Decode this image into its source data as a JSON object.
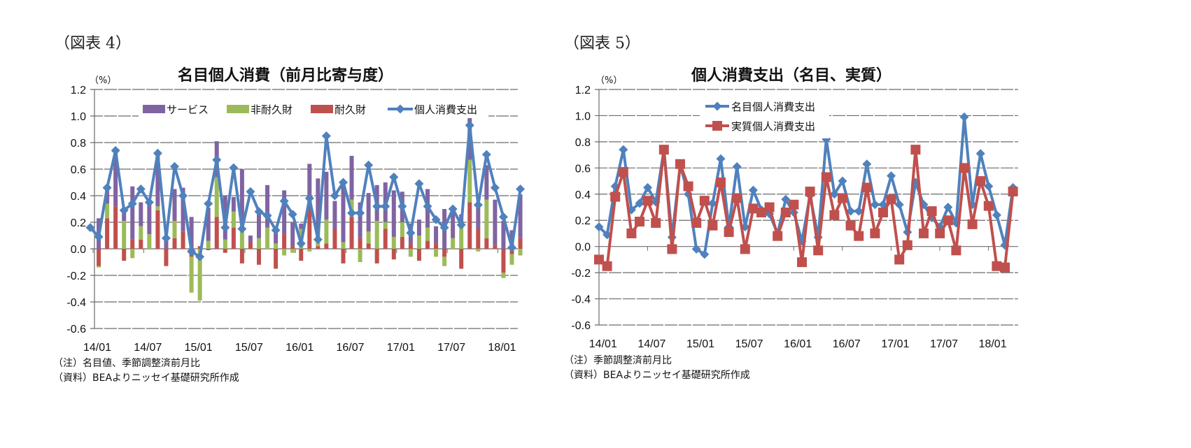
{
  "figures": [
    {
      "label": "（図表 4）",
      "unit": "（%）",
      "notes": [
        "（注）名目値、季節調整済前月比",
        "（資料）BEAよりニッセイ基礎研究所作成"
      ]
    },
    {
      "label": "（図表 5）",
      "unit": "（%）",
      "notes": [
        "（注）季節調整済前月比",
        "（資料）BEAよりニッセイ基礎研究所作成"
      ]
    }
  ],
  "chart_data": [
    {
      "type": "bar",
      "stacked": true,
      "title": "名目個人消費（前月比寄与度）",
      "ylabel": "（%）",
      "xlabel": "",
      "ylim": [
        -0.6,
        1.2
      ],
      "yticks": [
        1.2,
        1.0,
        0.8,
        0.6,
        0.4,
        0.2,
        0.0,
        -0.2,
        -0.4,
        -0.6
      ],
      "ytick_labels": [
        "1.2",
        "1.0",
        "0.8",
        "0.6",
        "0.4",
        "0.2",
        "0.0",
        "-0.2",
        "-0.4",
        "-0.6"
      ],
      "xtick_labels": [
        "14/01",
        "14/07",
        "15/01",
        "15/07",
        "16/01",
        "16/07",
        "17/01",
        "17/07",
        "18/01"
      ],
      "grid": true,
      "legend_position": "top",
      "start_month": "2013/12",
      "colors": {
        "services": "#8064A2",
        "nondurable": "#9BBB59",
        "durable": "#C0504D",
        "total": "#4F81BD"
      },
      "series": [
        {
          "name": "サービス",
          "key": "services",
          "kind": "bar",
          "values": [
            0.0,
            0.23,
            0.1,
            0.41,
            0.09,
            0.4,
            0.18,
            0.24,
            0.41,
            0.07,
            0.24,
            0.33,
            0.24,
            0.0,
            0.25,
            0.27,
            0.33,
            0.11,
            0.4,
            0.05,
            0.21,
            0.32,
            0.08,
            0.33,
            0.18,
            0.04,
            0.31,
            0.39,
            0.36,
            0.21,
            0.43,
            0.33,
            0.27,
            0.29,
            0.27,
            0.3,
            0.35,
            0.23,
            0.15,
            0.12,
            0.29,
            0.13,
            0.3,
            0.22,
            0.08,
            0.4,
            0.16,
            0.26,
            0.34,
            0.21,
            0.14,
            0.33
          ]
        },
        {
          "name": "非耐久財",
          "key": "nondurable",
          "kind": "bar",
          "values": [
            0.0,
            -0.01,
            0.11,
            0.0,
            0.21,
            -0.07,
            0.1,
            0.11,
            0.03,
            0.0,
            0.13,
            0.0,
            -0.27,
            -0.39,
            0.06,
            0.3,
            0.07,
            0.12,
            0.2,
            0.0,
            0.08,
            0.16,
            0.04,
            -0.05,
            -0.03,
            0.15,
            -0.02,
            0.12,
            0.18,
            0.0,
            0.05,
            0.13,
            -0.1,
            0.09,
            0.21,
            0.05,
            0.09,
            0.11,
            -0.06,
            0.1,
            0.1,
            -0.06,
            -0.07,
            0.08,
            0.18,
            0.32,
            -0.02,
            0.29,
            0.0,
            -0.04,
            -0.08,
            -0.05
          ]
        },
        {
          "name": "耐久財",
          "key": "durable",
          "kind": "bar",
          "values": [
            0.0,
            -0.13,
            0.23,
            0.32,
            -0.09,
            0.07,
            0.07,
            0.0,
            0.29,
            -0.13,
            0.08,
            0.13,
            -0.06,
            0.02,
            -0.01,
            0.24,
            -0.03,
            0.16,
            -0.11,
            0.05,
            -0.12,
            0.0,
            -0.15,
            0.11,
            0.02,
            -0.09,
            0.33,
            0.02,
            0.04,
            0.15,
            -0.11,
            0.24,
            0.08,
            0.04,
            -0.11,
            0.15,
            -0.08,
            0.09,
            0.04,
            -0.09,
            0.06,
            0.04,
            -0.06,
            0.0,
            -0.15,
            0.35,
            0.15,
            0.08,
            0.03,
            -0.18,
            -0.04,
            0.08
          ]
        },
        {
          "name": "個人消費支出",
          "key": "total",
          "kind": "line",
          "marker": "diamond",
          "values": [
            0.16,
            0.09,
            0.46,
            0.74,
            0.29,
            0.34,
            0.45,
            0.35,
            0.72,
            0.08,
            0.62,
            0.4,
            -0.02,
            -0.06,
            0.34,
            0.67,
            0.16,
            0.61,
            0.15,
            0.43,
            0.28,
            0.25,
            0.14,
            0.36,
            0.26,
            0.04,
            0.38,
            0.07,
            0.85,
            0.4,
            0.5,
            0.27,
            0.27,
            0.63,
            0.32,
            0.32,
            0.54,
            0.32,
            0.12,
            0.49,
            0.32,
            0.22,
            0.16,
            0.3,
            0.18,
            0.93,
            0.33,
            0.71,
            0.46,
            0.24,
            0.01,
            0.45
          ]
        }
      ]
    },
    {
      "type": "line",
      "title": "個人消費支出（名目、実質）",
      "ylabel": "（%）",
      "xlabel": "",
      "ylim": [
        -0.6,
        1.2
      ],
      "yticks": [
        1.2,
        1.0,
        0.8,
        0.6,
        0.4,
        0.2,
        0.0,
        -0.2,
        -0.4,
        -0.6
      ],
      "ytick_labels": [
        "1.2",
        "1.0",
        "0.8",
        "0.6",
        "0.4",
        "0.2",
        "0.0",
        "-0.2",
        "-0.4",
        "-0.6"
      ],
      "xtick_labels": [
        "14/01",
        "14/07",
        "15/01",
        "15/07",
        "16/01",
        "16/07",
        "17/01",
        "17/07",
        "18/01"
      ],
      "grid": true,
      "legend_position": "top-center",
      "start_month": "2013/12",
      "series": [
        {
          "name": "名目個人消費支出",
          "color": "#4F81BD",
          "marker": "diamond",
          "values": [
            0.15,
            0.09,
            0.46,
            0.74,
            0.28,
            0.33,
            0.45,
            0.34,
            0.74,
            0.07,
            0.62,
            0.4,
            -0.02,
            -0.06,
            0.33,
            0.67,
            0.15,
            0.61,
            0.15,
            0.43,
            0.28,
            0.25,
            0.1,
            0.36,
            0.26,
            0.04,
            0.39,
            0.07,
            0.82,
            0.4,
            0.5,
            0.27,
            0.27,
            0.63,
            0.32,
            0.32,
            0.54,
            0.32,
            0.11,
            0.49,
            0.32,
            0.22,
            0.15,
            0.3,
            0.18,
            0.99,
            0.32,
            0.71,
            0.46,
            0.24,
            0.01,
            0.45
          ]
        },
        {
          "name": "実質個人消費支出",
          "color": "#C0504D",
          "marker": "square",
          "values": [
            -0.1,
            -0.15,
            0.38,
            0.57,
            0.1,
            0.19,
            0.35,
            0.18,
            0.74,
            -0.02,
            0.63,
            0.46,
            0.18,
            0.35,
            0.16,
            0.49,
            0.11,
            0.37,
            -0.02,
            0.29,
            0.26,
            0.3,
            0.08,
            0.26,
            0.32,
            -0.12,
            0.42,
            -0.03,
            0.53,
            0.24,
            0.37,
            0.16,
            0.08,
            0.45,
            0.1,
            0.26,
            0.36,
            -0.1,
            0.01,
            0.74,
            0.1,
            0.27,
            0.1,
            0.2,
            -0.03,
            0.6,
            0.17,
            0.5,
            0.31,
            -0.15,
            -0.16,
            0.42
          ]
        }
      ]
    }
  ]
}
